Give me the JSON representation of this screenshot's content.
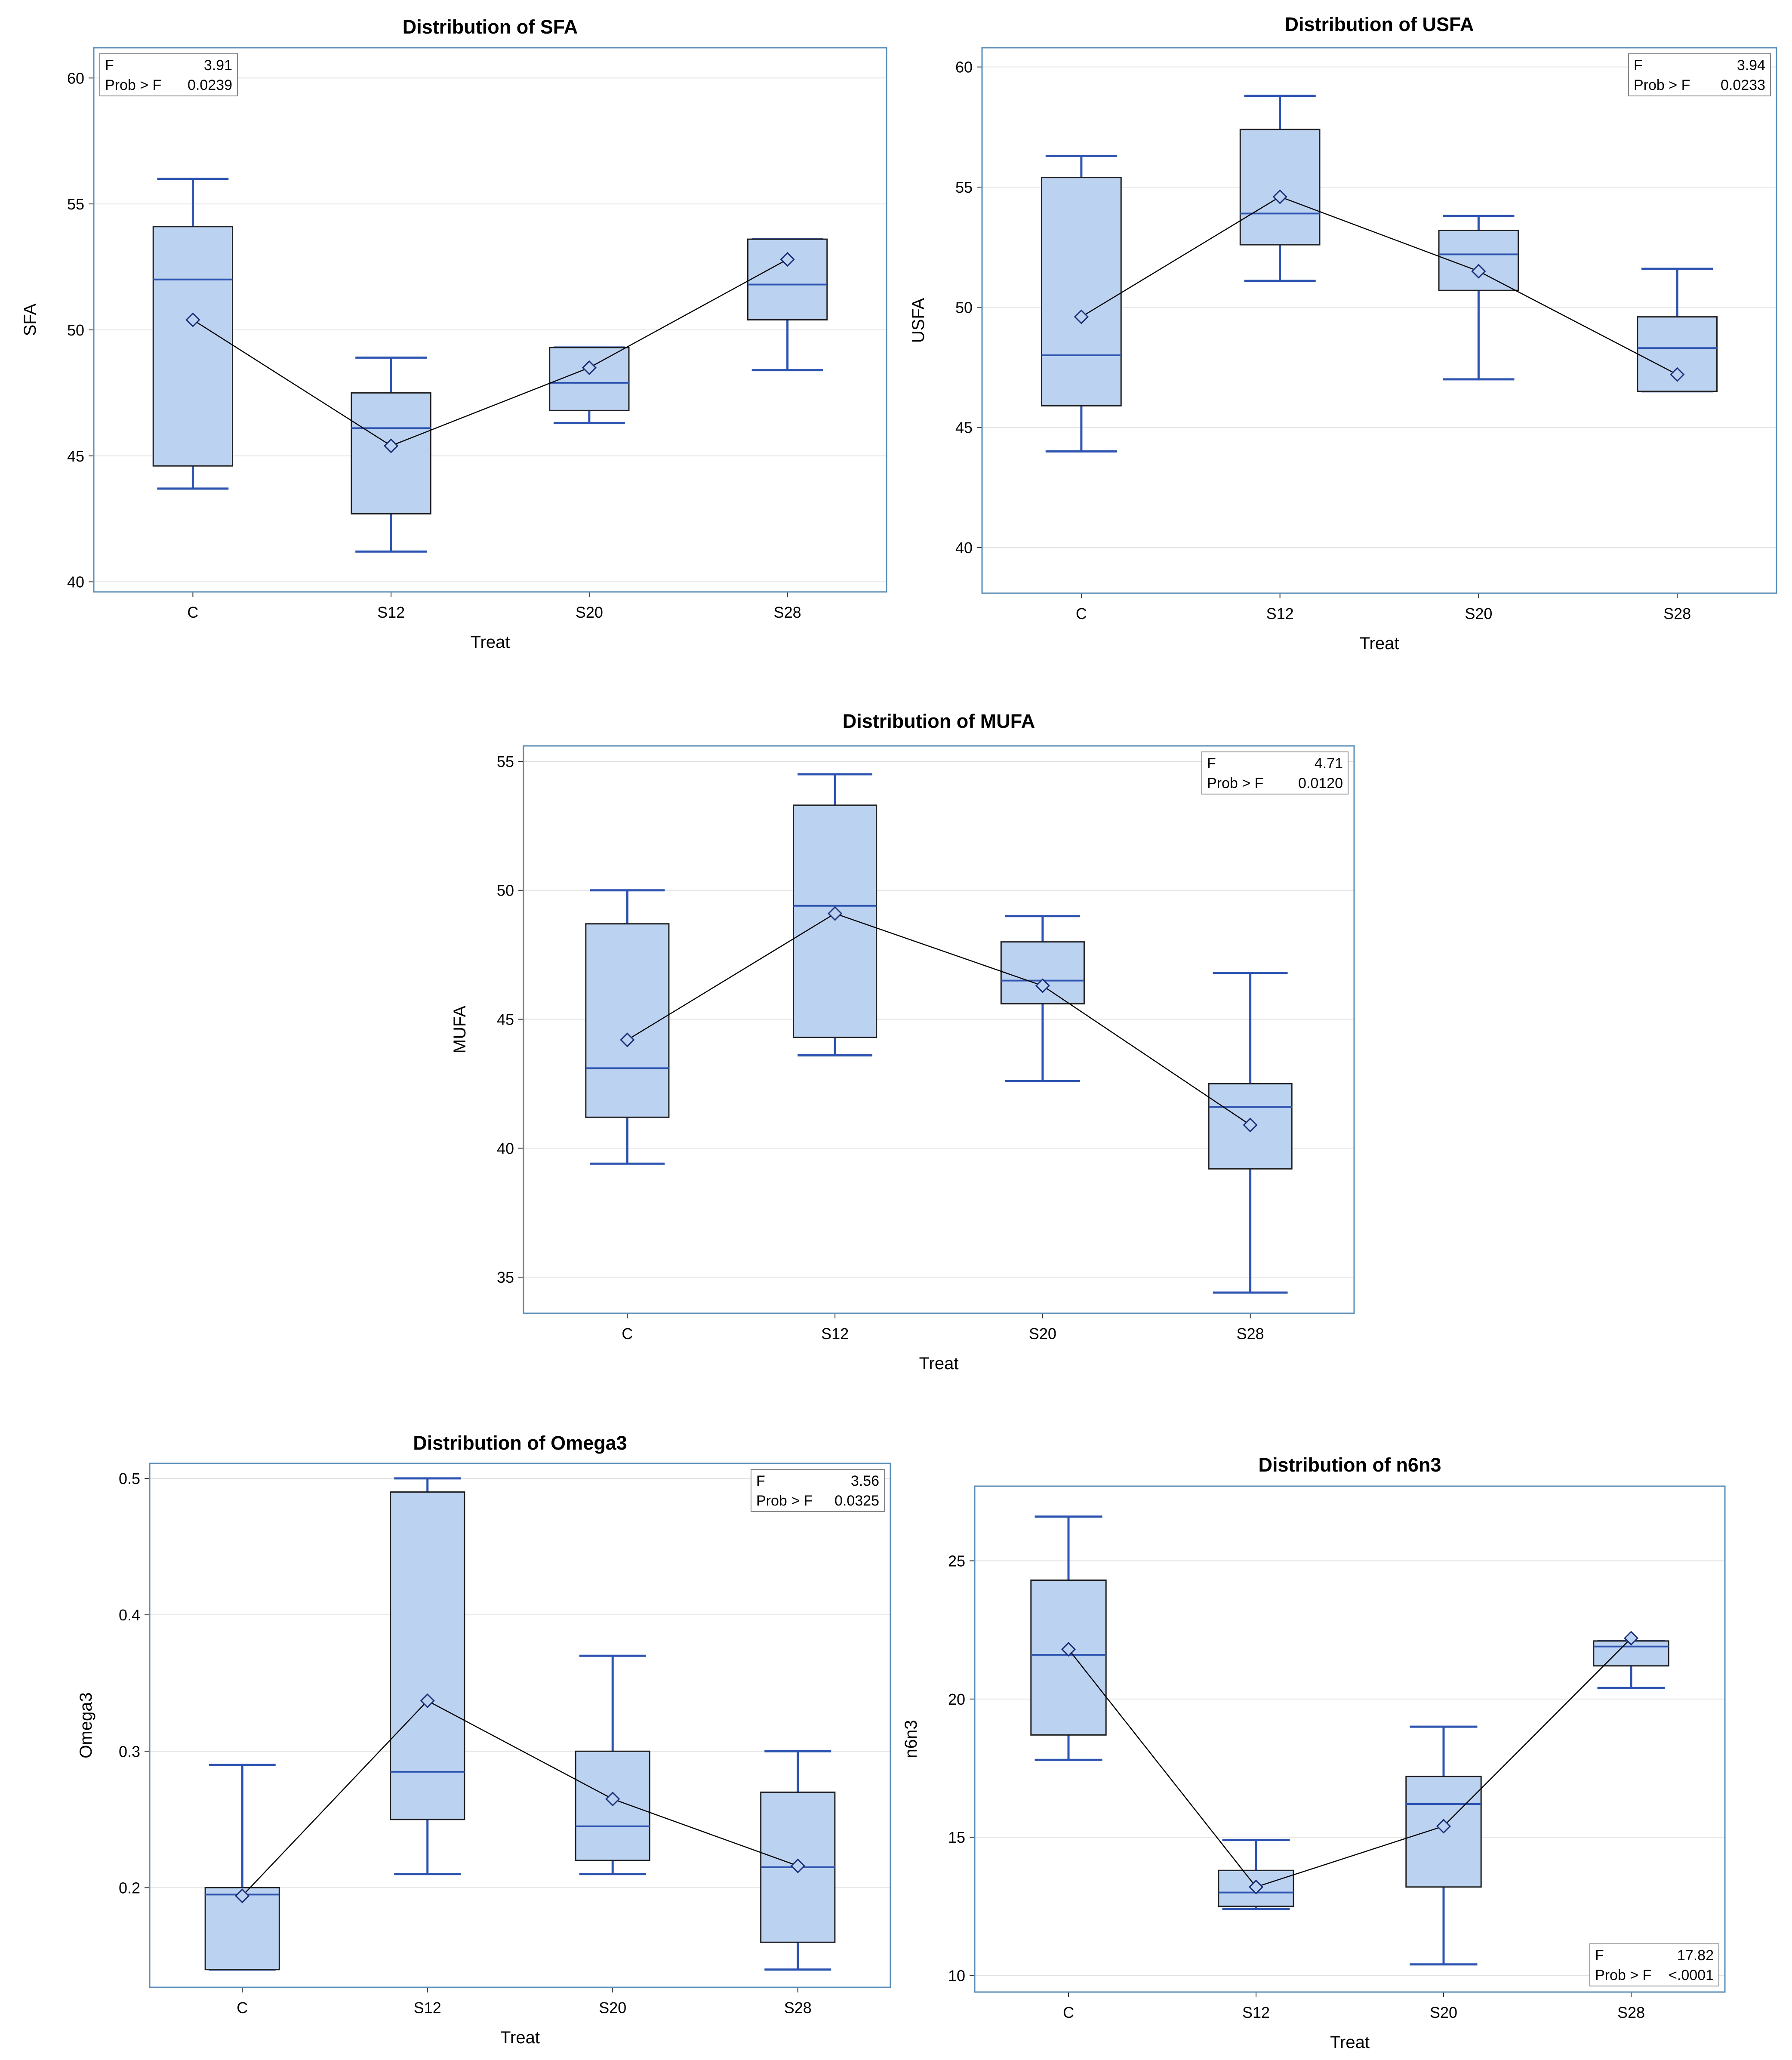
{
  "colors": {
    "box_fill": "#bcd2f1",
    "whisker": "#2c53b0",
    "frame": "#5a8db7",
    "mean_line": "#000000"
  },
  "chart_data": [
    {
      "type": "box",
      "title": "Distribution of SFA",
      "xlabel": "Treat",
      "ylabel": "SFA",
      "categories": [
        "C",
        "S12",
        "S20",
        "S28"
      ],
      "yticks": [
        "40",
        "45",
        "50",
        "55",
        "60"
      ],
      "ylim": [
        39.6,
        61.2
      ],
      "boxes": [
        {
          "min": 43.7,
          "q1": 44.6,
          "median": 52.0,
          "q3": 54.1,
          "max": 56.0,
          "mean": 50.4
        },
        {
          "min": 41.2,
          "q1": 42.7,
          "median": 46.1,
          "q3": 47.5,
          "max": 48.9,
          "mean": 45.4
        },
        {
          "min": 46.3,
          "q1": 46.8,
          "median": 47.9,
          "q3": 49.3,
          "max": 49.3,
          "mean": 48.5
        },
        {
          "min": 48.4,
          "q1": 50.4,
          "median": 51.8,
          "q3": 53.6,
          "max": 53.6,
          "mean": 52.8
        }
      ],
      "stats": {
        "legend_position": "top-left",
        "f_label": "F",
        "f_value": "3.91",
        "p_label": "Prob > F",
        "p_value": "0.0239"
      }
    },
    {
      "type": "box",
      "title": "Distribution of USFA",
      "xlabel": "Treat",
      "ylabel": "USFA",
      "categories": [
        "C",
        "S12",
        "S20",
        "S28"
      ],
      "yticks": [
        "40",
        "45",
        "50",
        "55",
        "60"
      ],
      "ylim": [
        38.1,
        60.8
      ],
      "boxes": [
        {
          "min": 44.0,
          "q1": 45.9,
          "median": 48.0,
          "q3": 55.4,
          "max": 56.3,
          "mean": 49.6
        },
        {
          "min": 51.1,
          "q1": 52.6,
          "median": 53.9,
          "q3": 57.4,
          "max": 58.8,
          "mean": 54.6
        },
        {
          "min": 47.0,
          "q1": 50.7,
          "median": 52.2,
          "q3": 53.2,
          "max": 53.8,
          "mean": 51.5
        },
        {
          "min": 46.5,
          "q1": 46.5,
          "median": 48.3,
          "q3": 49.6,
          "max": 51.6,
          "mean": 47.2
        }
      ],
      "stats": {
        "legend_position": "top-right",
        "f_label": "F",
        "f_value": "3.94",
        "p_label": "Prob > F",
        "p_value": "0.0233"
      }
    },
    {
      "type": "box",
      "title": "Distribution of MUFA",
      "xlabel": "Treat",
      "ylabel": "MUFA",
      "categories": [
        "C",
        "S12",
        "S20",
        "S28"
      ],
      "yticks": [
        "35",
        "40",
        "45",
        "50",
        "55"
      ],
      "ylim": [
        33.6,
        55.6
      ],
      "boxes": [
        {
          "min": 39.4,
          "q1": 41.2,
          "median": 43.1,
          "q3": 48.7,
          "max": 50.0,
          "mean": 44.2
        },
        {
          "min": 43.6,
          "q1": 44.3,
          "median": 49.4,
          "q3": 53.3,
          "max": 54.5,
          "mean": 49.1
        },
        {
          "min": 42.6,
          "q1": 45.6,
          "median": 46.5,
          "q3": 48.0,
          "max": 49.0,
          "mean": 46.3
        },
        {
          "min": 34.4,
          "q1": 39.2,
          "median": 41.6,
          "q3": 42.5,
          "max": 46.8,
          "mean": 40.9
        }
      ],
      "stats": {
        "legend_position": "top-right",
        "f_label": "F",
        "f_value": "4.71",
        "p_label": "Prob > F",
        "p_value": "0.0120"
      }
    },
    {
      "type": "box",
      "title": "Distribution of Omega3",
      "xlabel": "Treat",
      "ylabel": "Omega3",
      "categories": [
        "C",
        "S12",
        "S20",
        "S28"
      ],
      "yticks": [
        "0.2",
        "0.3",
        "0.4",
        "0.5"
      ],
      "ylim": [
        0.127,
        0.511
      ],
      "boxes": [
        {
          "min": 0.14,
          "q1": 0.14,
          "median": 0.195,
          "q3": 0.2,
          "max": 0.29,
          "mean": 0.194
        },
        {
          "min": 0.21,
          "q1": 0.25,
          "median": 0.285,
          "q3": 0.49,
          "max": 0.5,
          "mean": 0.337
        },
        {
          "min": 0.21,
          "q1": 0.22,
          "median": 0.245,
          "q3": 0.3,
          "max": 0.37,
          "mean": 0.265
        },
        {
          "min": 0.14,
          "q1": 0.16,
          "median": 0.215,
          "q3": 0.27,
          "max": 0.3,
          "mean": 0.216
        }
      ],
      "stats": {
        "legend_position": "top-right",
        "f_label": "F",
        "f_value": "3.56",
        "p_label": "Prob > F",
        "p_value": "0.0325"
      }
    },
    {
      "type": "box",
      "title": "Distribution of n6n3",
      "xlabel": "Treat",
      "ylabel": "n6n3",
      "categories": [
        "C",
        "S12",
        "S20",
        "S28"
      ],
      "yticks": [
        "10",
        "15",
        "20",
        "25"
      ],
      "ylim": [
        9.4,
        27.7
      ],
      "boxes": [
        {
          "min": 17.8,
          "q1": 18.7,
          "median": 21.6,
          "q3": 24.3,
          "max": 26.6,
          "mean": 21.8
        },
        {
          "min": 12.4,
          "q1": 12.5,
          "median": 13.0,
          "q3": 13.8,
          "max": 14.9,
          "mean": 13.2
        },
        {
          "min": 10.4,
          "q1": 13.2,
          "median": 16.2,
          "q3": 17.2,
          "max": 19.0,
          "mean": 15.4
        },
        {
          "min": 20.4,
          "q1": 21.2,
          "median": 21.9,
          "q3": 22.1,
          "max": 22.1,
          "mean": 22.2
        }
      ],
      "stats": {
        "legend_position": "bottom-right",
        "f_label": "F",
        "f_value": "17.82",
        "p_label": "Prob > F",
        "p_value": "<.0001"
      }
    }
  ]
}
